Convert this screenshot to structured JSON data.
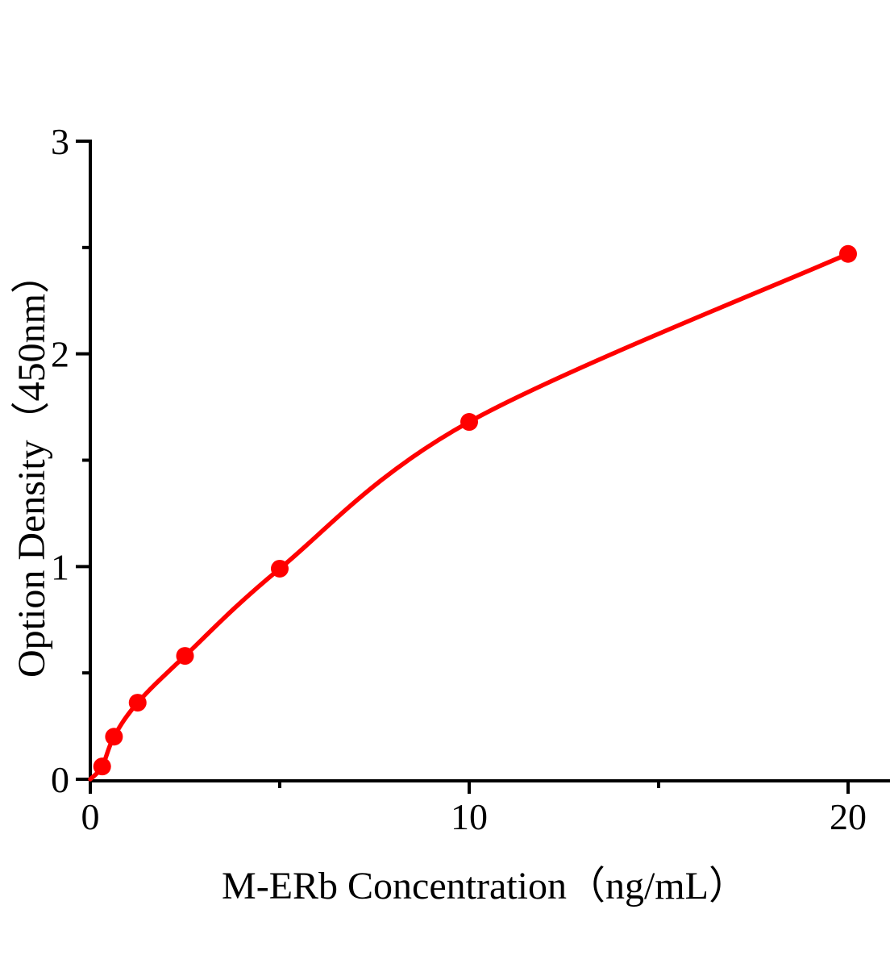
{
  "figure": {
    "background": "#ffffff"
  },
  "chart_data": {
    "type": "line",
    "title": "",
    "xlabel": "M-ERb Concentration（ng/mL）",
    "ylabel": "Option Density（450nm）",
    "x": [
      0.313,
      0.625,
      1.25,
      2.5,
      5,
      10,
      20
    ],
    "y": [
      0.06,
      0.2,
      0.36,
      0.58,
      0.99,
      1.68,
      2.47
    ],
    "curve_start": {
      "x": 0,
      "y": 0
    },
    "xlim": [
      0,
      20
    ],
    "ylim": [
      0,
      3
    ],
    "x_major_ticks": [
      0,
      10,
      20
    ],
    "x_minor_ticks": [
      5,
      15
    ],
    "y_major_ticks": [
      0,
      1,
      2,
      3
    ],
    "y_minor_ticks": [
      0.5,
      1.5,
      2.5
    ],
    "x_tick_labels": [
      "0",
      "10",
      "20"
    ],
    "y_tick_labels": [
      "0",
      "1",
      "2",
      "3"
    ],
    "grid": false,
    "legend": null,
    "marker": "circle",
    "line_color": "#ff0000",
    "marker_color": "#ff0000",
    "axis_color": "#000000",
    "tick_direction": "out"
  }
}
